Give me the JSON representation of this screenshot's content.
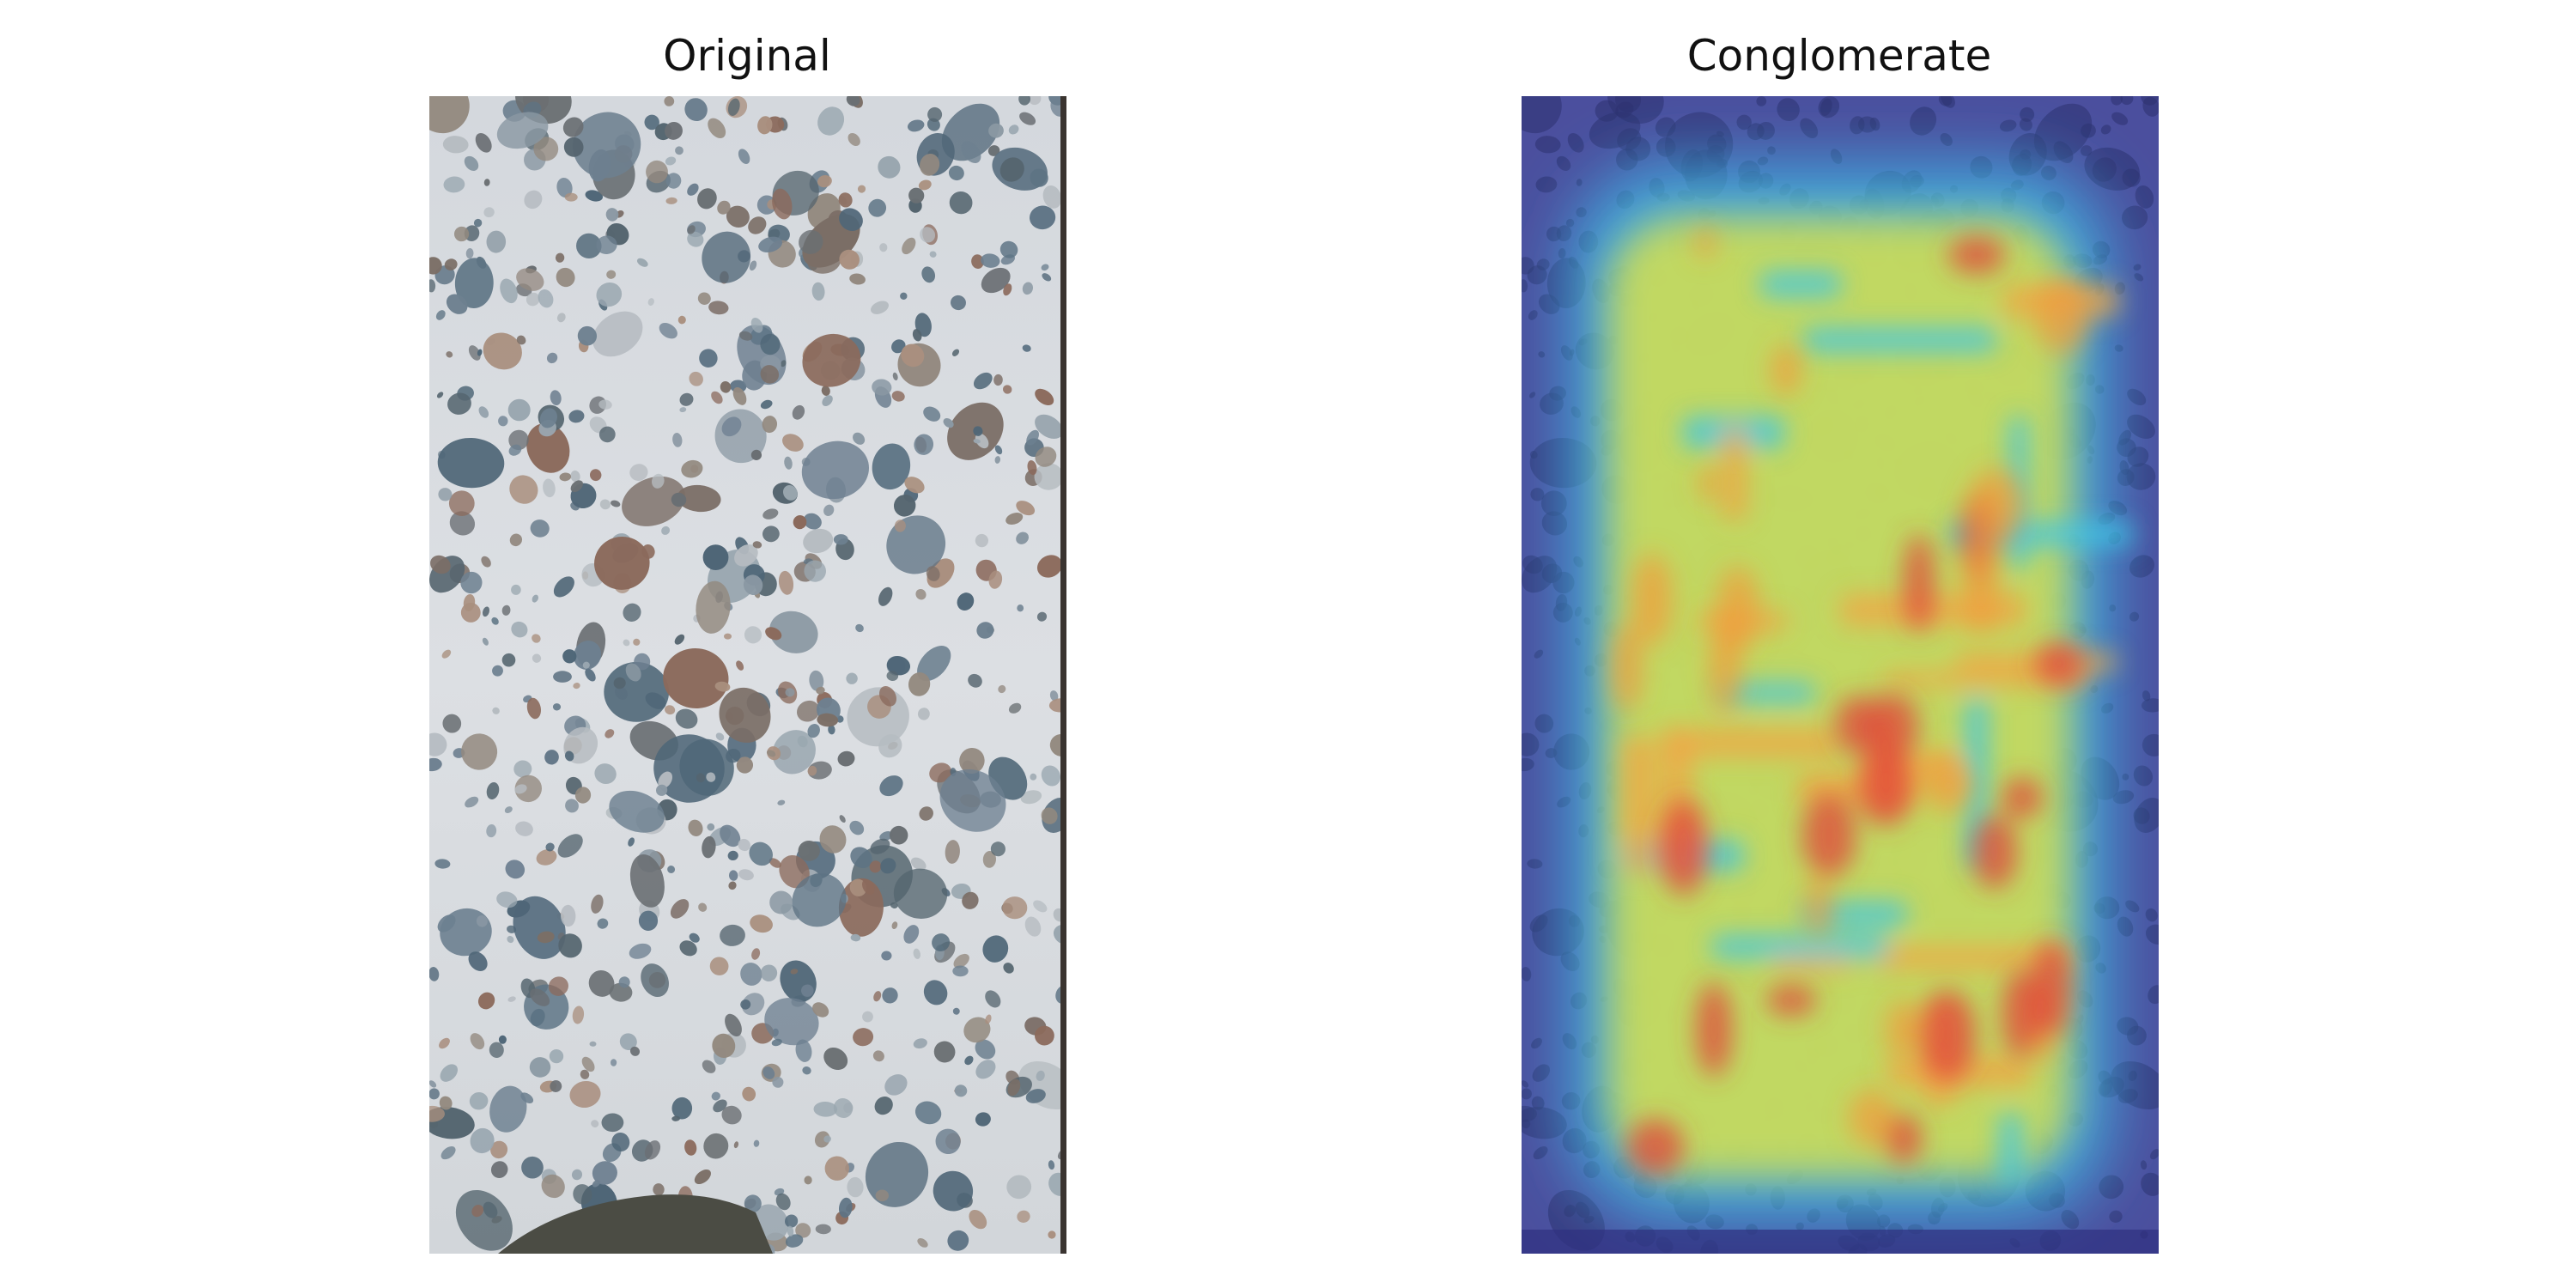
{
  "figure": {
    "panels": [
      {
        "title": "Original"
      },
      {
        "title": "Conglomerate"
      }
    ]
  }
}
